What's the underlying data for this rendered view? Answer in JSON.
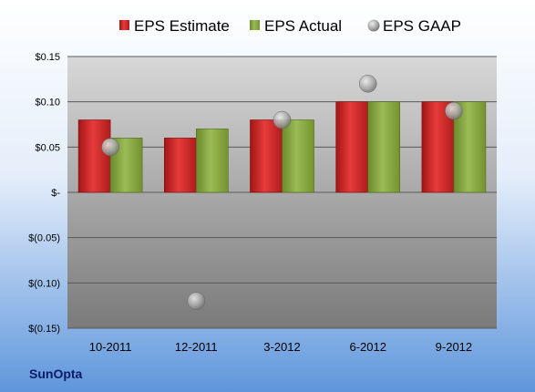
{
  "company": "SunOpta",
  "colors": {
    "estimate": "#d42a2a",
    "actual": "#88a845",
    "gaap": "#a0a0a0",
    "background_top": "#ffffff",
    "background_bottom": "#5f96dc",
    "plot_top": "#d6d6d6",
    "plot_bottom": "#7e7e7e"
  },
  "chart_data": {
    "type": "bar",
    "categories": [
      "10-2011",
      "12-2011",
      "3-2012",
      "6-2012",
      "9-2012"
    ],
    "series": [
      {
        "name": "EPS Estimate",
        "type": "bar",
        "values": [
          0.08,
          0.06,
          0.08,
          0.1,
          0.1
        ]
      },
      {
        "name": "EPS Actual",
        "type": "bar",
        "values": [
          0.06,
          0.07,
          0.08,
          0.1,
          0.1
        ]
      },
      {
        "name": "EPS GAAP",
        "type": "scatter",
        "values": [
          0.05,
          -0.12,
          0.08,
          0.12,
          0.09
        ]
      }
    ],
    "ylim": [
      -0.15,
      0.15
    ],
    "yticks": [
      0.15,
      0.1,
      0.05,
      0,
      -0.05,
      -0.1,
      -0.15
    ],
    "ytick_labels": [
      "$0.15",
      "$0.10",
      "$0.05",
      "$-",
      "$(0.05)",
      "$(0.10)",
      "$(0.15)"
    ],
    "grid": true,
    "legend_position": "top"
  }
}
